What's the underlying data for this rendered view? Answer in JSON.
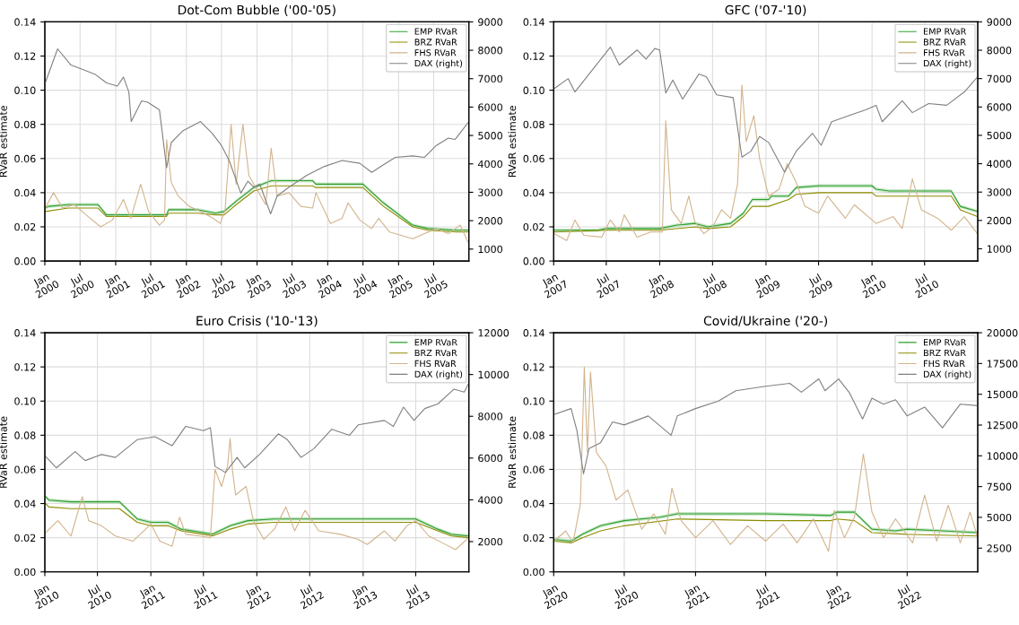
{
  "chart_data": [
    {
      "type": "line",
      "title": "Dot-Com Bubble ('00-'05)",
      "ylabel": "RVaR estimate",
      "grid": true,
      "legend": "top right",
      "xlim": [
        "2000-01-01",
        "2005-12-30"
      ],
      "xticks": [
        {
          "value": "2000-01-01",
          "label": "Jan\n2000"
        },
        {
          "value": "2000-07-01",
          "label": "Jul\n2000"
        },
        {
          "value": "2001-01-01",
          "label": "Jan\n2001"
        },
        {
          "value": "2001-07-01",
          "label": "Jul\n2001"
        },
        {
          "value": "2002-01-01",
          "label": "Jan\n2002"
        },
        {
          "value": "2002-07-01",
          "label": "Jul\n2002"
        },
        {
          "value": "2003-01-01",
          "label": "Jan\n2003"
        },
        {
          "value": "2003-07-01",
          "label": "Jul\n2003"
        },
        {
          "value": "2004-01-01",
          "label": "Jan\n2004"
        },
        {
          "value": "2004-07-01",
          "label": "Jul\n2004"
        },
        {
          "value": "2005-01-01",
          "label": "Jan\n2005"
        },
        {
          "value": "2005-07-01",
          "label": "Jul\n2005"
        }
      ],
      "ylim": [
        0,
        0.14
      ],
      "yticks": [
        {
          "value": 0,
          "label": "0.00"
        },
        {
          "value": 0.02,
          "label": "0.02"
        },
        {
          "value": 0.04,
          "label": "0.04"
        },
        {
          "value": 0.06,
          "label": "0.06"
        },
        {
          "value": 0.08,
          "label": "0.08"
        },
        {
          "value": 0.1,
          "label": "0.10"
        },
        {
          "value": 0.12,
          "label": "0.12"
        },
        {
          "value": 0.14,
          "label": "0.14"
        }
      ],
      "y2lim": [
        580,
        9000
      ],
      "y2ticks": [
        1000,
        2000,
        3000,
        4000,
        5000,
        6000,
        7000,
        8000,
        9000
      ],
      "series": [
        {
          "name": "EMP RVaR",
          "color": "#2ca02c",
          "x": [
            "2000-01-03",
            "2000-01-20",
            "2000-05-01",
            "2000-10-01",
            "2000-11-15",
            "2001-07-01",
            "2001-09-20",
            "2001-10-01",
            "2002-03-01",
            "2002-06-01",
            "2002-07-15",
            "2002-09-15",
            "2002-12-15",
            "2003-03-15",
            "2003-10-15",
            "2003-11-01",
            "2004-07-01",
            "2004-10-15",
            "2005-03-15",
            "2005-06-01",
            "2005-11-01",
            "2005-12-30"
          ],
          "values": [
            0.031,
            0.032,
            0.033,
            0.033,
            0.027,
            0.027,
            0.027,
            0.03,
            0.03,
            0.028,
            0.029,
            0.035,
            0.043,
            0.047,
            0.047,
            0.045,
            0.045,
            0.034,
            0.021,
            0.019,
            0.018,
            0.018
          ],
          "lower": [
            0.03,
            0.031,
            0.032,
            0.032,
            0.026,
            0.026,
            0.026,
            0.029,
            0.029,
            0.027,
            0.028,
            0.034,
            0.042,
            0.046,
            0.046,
            0.044,
            0.044,
            0.033,
            0.02,
            0.018,
            0.017,
            0.017
          ],
          "upper": [
            0.032,
            0.033,
            0.034,
            0.034,
            0.028,
            0.028,
            0.028,
            0.031,
            0.031,
            0.029,
            0.03,
            0.036,
            0.044,
            0.048,
            0.048,
            0.046,
            0.046,
            0.035,
            0.022,
            0.02,
            0.019,
            0.019
          ]
        },
        {
          "name": "BRZ RVaR",
          "color": "#8c8c00",
          "x": [
            "2000-01-03",
            "2000-05-01",
            "2000-10-01",
            "2000-11-15",
            "2001-09-20",
            "2001-10-01",
            "2002-03-01",
            "2002-06-01",
            "2002-07-15",
            "2002-09-15",
            "2002-12-15",
            "2003-03-15",
            "2003-10-15",
            "2003-11-01",
            "2004-07-01",
            "2004-10-15",
            "2005-03-15",
            "2005-06-01",
            "2005-11-01",
            "2005-12-30"
          ],
          "values": [
            0.029,
            0.031,
            0.031,
            0.026,
            0.026,
            0.028,
            0.028,
            0.027,
            0.027,
            0.033,
            0.041,
            0.044,
            0.044,
            0.043,
            0.043,
            0.032,
            0.02,
            0.018,
            0.017,
            0.017
          ]
        },
        {
          "name": "FHS RVaR",
          "color": "#d2b48c",
          "x": [
            "2000-01-03",
            "2000-02-15",
            "2000-04-01",
            "2000-06-01",
            "2000-08-01",
            "2000-10-15",
            "2000-12-15",
            "2001-02-10",
            "2001-03-20",
            "2001-05-10",
            "2001-06-20",
            "2001-08-15",
            "2001-09-10",
            "2001-09-21",
            "2001-10-15",
            "2001-11-20",
            "2002-01-15",
            "2002-03-15",
            "2002-05-20",
            "2002-06-25",
            "2002-07-20",
            "2002-08-20",
            "2002-09-15",
            "2002-10-20",
            "2002-11-20",
            "2003-01-10",
            "2003-02-15",
            "2003-03-15",
            "2003-04-15",
            "2003-06-15",
            "2003-08-15",
            "2003-10-15",
            "2003-11-01",
            "2004-01-15",
            "2004-03-15",
            "2004-04-15",
            "2004-06-15",
            "2004-08-15",
            "2004-09-20",
            "2004-11-15",
            "2005-01-15",
            "2005-03-15",
            "2005-05-15",
            "2005-07-15",
            "2005-09-15",
            "2005-11-15",
            "2005-12-30"
          ],
          "values": [
            0.031,
            0.04,
            0.031,
            0.033,
            0.027,
            0.02,
            0.024,
            0.036,
            0.025,
            0.045,
            0.029,
            0.021,
            0.024,
            0.071,
            0.046,
            0.038,
            0.032,
            0.029,
            0.025,
            0.022,
            0.03,
            0.08,
            0.045,
            0.08,
            0.05,
            0.04,
            0.033,
            0.066,
            0.038,
            0.04,
            0.032,
            0.031,
            0.04,
            0.022,
            0.025,
            0.034,
            0.024,
            0.019,
            0.025,
            0.017,
            0.015,
            0.013,
            0.016,
            0.019,
            0.016,
            0.021,
            0.01
          ]
        },
        {
          "name": "DAX (right)",
          "color": "#808080",
          "axis": "y2",
          "x": [
            "2000-01-03",
            "2000-03-07",
            "2000-05-15",
            "2000-07-15",
            "2000-09-15",
            "2000-11-15",
            "2001-01-10",
            "2001-02-10",
            "2001-03-10",
            "2001-03-22",
            "2001-05-15",
            "2001-06-15",
            "2001-08-15",
            "2001-09-21",
            "2001-10-15",
            "2001-12-15",
            "2002-03-15",
            "2002-05-15",
            "2002-07-01",
            "2002-08-10",
            "2002-10-09",
            "2002-11-15",
            "2002-12-15",
            "2003-01-15",
            "2003-03-12",
            "2003-04-15",
            "2003-06-15",
            "2003-09-15",
            "2003-12-15",
            "2004-03-15",
            "2004-06-15",
            "2004-08-15",
            "2004-10-15",
            "2004-12-15",
            "2005-03-15",
            "2005-05-15",
            "2005-07-15",
            "2005-09-15",
            "2005-10-20",
            "2005-12-30"
          ],
          "values": [
            6850,
            8050,
            7480,
            7320,
            7160,
            6850,
            6740,
            7060,
            6530,
            5490,
            6220,
            6170,
            5900,
            3860,
            4750,
            5170,
            5490,
            5070,
            4650,
            4120,
            2970,
            3390,
            3180,
            3290,
            2240,
            2870,
            3180,
            3600,
            3910,
            4120,
            4020,
            3700,
            3970,
            4230,
            4280,
            4230,
            4650,
            4910,
            4860,
            5490
          ]
        }
      ]
    },
    {
      "type": "line",
      "title": "GFC ('07-'10)",
      "ylabel": "RVaR estimate",
      "grid": true,
      "legend": "top right",
      "xlim": [
        "2007-01-01",
        "2010-12-31"
      ],
      "xticks": [
        {
          "value": "2007-01-01",
          "label": "Jan\n2007"
        },
        {
          "value": "2007-07-01",
          "label": "Jul\n2007"
        },
        {
          "value": "2008-01-01",
          "label": "Jan\n2008"
        },
        {
          "value": "2008-07-01",
          "label": "Jul\n2008"
        },
        {
          "value": "2009-01-01",
          "label": "Jan\n2009"
        },
        {
          "value": "2009-07-01",
          "label": "Jul\n2009"
        },
        {
          "value": "2010-01-01",
          "label": "Jan\n2010"
        },
        {
          "value": "2010-07-01",
          "label": "Jul\n2010"
        }
      ],
      "ylim": [
        0,
        0.14
      ],
      "yticks": [
        {
          "value": 0,
          "label": "0.00"
        },
        {
          "value": 0.02,
          "label": "0.02"
        },
        {
          "value": 0.04,
          "label": "0.04"
        },
        {
          "value": 0.06,
          "label": "0.06"
        },
        {
          "value": 0.08,
          "label": "0.08"
        },
        {
          "value": 0.1,
          "label": "0.10"
        },
        {
          "value": 0.12,
          "label": "0.12"
        },
        {
          "value": 0.14,
          "label": "0.14"
        }
      ],
      "y2lim": [
        570,
        9000
      ],
      "y2ticks": [
        1000,
        2000,
        3000,
        4000,
        5000,
        6000,
        7000,
        8000,
        9000
      ],
      "series": [
        {
          "name": "EMP RVaR",
          "color": "#2ca02c",
          "x": [
            "2007-01-02",
            "2007-06-01",
            "2007-07-01",
            "2008-01-01",
            "2008-03-01",
            "2008-05-01",
            "2008-06-15",
            "2008-09-01",
            "2008-10-15",
            "2008-11-15",
            "2009-01-10",
            "2009-01-20",
            "2009-03-20",
            "2009-04-15",
            "2009-07-01",
            "2010-01-01",
            "2010-01-15",
            "2010-03-01",
            "2010-10-01",
            "2010-11-01",
            "2010-12-30"
          ],
          "values": [
            0.018,
            0.018,
            0.019,
            0.019,
            0.021,
            0.022,
            0.02,
            0.022,
            0.028,
            0.036,
            0.036,
            0.038,
            0.038,
            0.043,
            0.044,
            0.044,
            0.042,
            0.041,
            0.041,
            0.032,
            0.029
          ],
          "lower": [
            0.017,
            0.017,
            0.018,
            0.018,
            0.02,
            0.021,
            0.019,
            0.021,
            0.027,
            0.035,
            0.035,
            0.037,
            0.037,
            0.042,
            0.043,
            0.043,
            0.041,
            0.04,
            0.04,
            0.031,
            0.028
          ],
          "upper": [
            0.019,
            0.019,
            0.02,
            0.02,
            0.022,
            0.023,
            0.021,
            0.023,
            0.029,
            0.037,
            0.037,
            0.039,
            0.039,
            0.044,
            0.045,
            0.045,
            0.043,
            0.042,
            0.042,
            0.033,
            0.03
          ]
        },
        {
          "name": "BRZ RVaR",
          "color": "#8c8c00",
          "x": [
            "2007-01-02",
            "2007-07-01",
            "2008-01-01",
            "2008-05-01",
            "2008-06-15",
            "2008-09-01",
            "2008-10-15",
            "2008-11-15",
            "2009-01-10",
            "2009-03-20",
            "2009-04-15",
            "2009-07-01",
            "2010-01-01",
            "2010-01-15",
            "2010-10-01",
            "2010-11-01",
            "2010-12-30"
          ],
          "values": [
            0.017,
            0.018,
            0.018,
            0.02,
            0.019,
            0.02,
            0.026,
            0.032,
            0.032,
            0.036,
            0.039,
            0.04,
            0.04,
            0.038,
            0.038,
            0.03,
            0.026
          ]
        },
        {
          "name": "FHS RVaR",
          "color": "#d2b48c",
          "x": [
            "2007-01-02",
            "2007-02-15",
            "2007-03-15",
            "2007-04-15",
            "2007-06-15",
            "2007-07-15",
            "2007-08-15",
            "2007-09-01",
            "2007-10-15",
            "2007-12-01",
            "2008-01-10",
            "2008-01-22",
            "2008-02-10",
            "2008-03-15",
            "2008-04-10",
            "2008-05-01",
            "2008-06-01",
            "2008-07-01",
            "2008-08-01",
            "2008-09-01",
            "2008-09-25",
            "2008-10-10",
            "2008-10-25",
            "2008-11-20",
            "2008-12-10",
            "2009-01-10",
            "2009-02-15",
            "2009-03-15",
            "2009-04-15",
            "2009-05-15",
            "2009-07-01",
            "2009-08-01",
            "2009-10-01",
            "2009-11-01",
            "2010-01-15",
            "2010-03-15",
            "2010-04-15",
            "2010-05-20",
            "2010-06-20",
            "2010-08-15",
            "2010-10-01",
            "2010-11-15",
            "2010-12-30"
          ],
          "values": [
            0.016,
            0.012,
            0.024,
            0.015,
            0.014,
            0.024,
            0.017,
            0.027,
            0.014,
            0.017,
            0.017,
            0.082,
            0.03,
            0.022,
            0.038,
            0.023,
            0.016,
            0.02,
            0.03,
            0.025,
            0.045,
            0.103,
            0.07,
            0.085,
            0.06,
            0.038,
            0.042,
            0.057,
            0.046,
            0.032,
            0.028,
            0.038,
            0.025,
            0.033,
            0.022,
            0.026,
            0.019,
            0.048,
            0.03,
            0.025,
            0.018,
            0.026,
            0.016
          ]
        },
        {
          "name": "DAX (right)",
          "color": "#808080",
          "axis": "y2",
          "x": [
            "2007-01-02",
            "2007-02-20",
            "2007-03-15",
            "2007-07-15",
            "2007-08-15",
            "2007-10-15",
            "2007-11-15",
            "2007-12-15",
            "2008-01-01",
            "2008-01-22",
            "2008-02-15",
            "2008-03-20",
            "2008-05-15",
            "2008-06-10",
            "2008-07-15",
            "2008-09-10",
            "2008-10-10",
            "2008-11-10",
            "2008-12-10",
            "2009-01-10",
            "2009-03-06",
            "2009-04-15",
            "2009-06-10",
            "2009-07-10",
            "2009-08-15",
            "2009-10-15",
            "2009-12-10",
            "2010-01-15",
            "2010-02-05",
            "2010-04-15",
            "2010-05-20",
            "2010-07-15",
            "2010-09-15",
            "2010-11-15",
            "2010-12-30"
          ],
          "values": [
            6640,
            7000,
            6530,
            8110,
            7480,
            8010,
            7690,
            8060,
            8010,
            6490,
            6950,
            6280,
            7160,
            7060,
            6430,
            6330,
            4230,
            4440,
            4960,
            4750,
            3700,
            4440,
            5070,
            4650,
            5480,
            5700,
            5900,
            6060,
            5480,
            6220,
            5800,
            6120,
            6060,
            6530,
            7060
          ]
        }
      ]
    },
    {
      "type": "line",
      "title": "Euro Crisis ('10-'13)",
      "ylabel": "RVaR estimate",
      "grid": true,
      "legend": "top right",
      "xlim": [
        "2010-01-01",
        "2013-12-31"
      ],
      "xticks": [
        {
          "value": "2010-01-01",
          "label": "Jan\n2010"
        },
        {
          "value": "2010-07-01",
          "label": "Jul\n2010"
        },
        {
          "value": "2011-01-01",
          "label": "Jan\n2011"
        },
        {
          "value": "2011-07-01",
          "label": "Jul\n2011"
        },
        {
          "value": "2012-01-01",
          "label": "Jan\n2012"
        },
        {
          "value": "2012-07-01",
          "label": "Jul\n2012"
        },
        {
          "value": "2013-01-01",
          "label": "Jan\n2013"
        },
        {
          "value": "2013-07-01",
          "label": "Jul\n2013"
        }
      ],
      "ylim": [
        0,
        0.14
      ],
      "yticks": [
        {
          "value": 0,
          "label": "0.00"
        },
        {
          "value": 0.02,
          "label": "0.02"
        },
        {
          "value": 0.04,
          "label": "0.04"
        },
        {
          "value": 0.06,
          "label": "0.06"
        },
        {
          "value": 0.08,
          "label": "0.08"
        },
        {
          "value": 0.1,
          "label": "0.10"
        },
        {
          "value": 0.12,
          "label": "0.12"
        },
        {
          "value": 0.14,
          "label": "0.14"
        }
      ],
      "y2lim": [
        550,
        12000
      ],
      "y2ticks": [
        2000,
        4000,
        6000,
        8000,
        10000,
        12000
      ],
      "series": [
        {
          "name": "EMP RVaR",
          "color": "#2ca02c",
          "x": [
            "2010-01-04",
            "2010-01-15",
            "2010-04-01",
            "2010-09-15",
            "2010-11-15",
            "2011-01-01",
            "2011-03-01",
            "2011-04-15",
            "2011-07-01",
            "2011-08-01",
            "2011-10-01",
            "2011-12-01",
            "2012-03-01",
            "2012-09-01",
            "2013-03-01",
            "2013-07-01",
            "2013-09-15",
            "2013-11-01",
            "2013-12-30"
          ],
          "values": [
            0.044,
            0.042,
            0.041,
            0.041,
            0.031,
            0.029,
            0.029,
            0.025,
            0.023,
            0.022,
            0.027,
            0.03,
            0.031,
            0.031,
            0.031,
            0.031,
            0.025,
            0.022,
            0.021
          ],
          "lower": [
            0.043,
            0.041,
            0.04,
            0.04,
            0.03,
            0.028,
            0.028,
            0.024,
            0.022,
            0.021,
            0.026,
            0.029,
            0.03,
            0.03,
            0.03,
            0.03,
            0.024,
            0.021,
            0.02
          ],
          "upper": [
            0.045,
            0.043,
            0.042,
            0.042,
            0.032,
            0.03,
            0.03,
            0.026,
            0.024,
            0.023,
            0.028,
            0.031,
            0.032,
            0.032,
            0.032,
            0.032,
            0.026,
            0.023,
            0.022
          ]
        },
        {
          "name": "BRZ RVaR",
          "color": "#8c8c00",
          "x": [
            "2010-01-04",
            "2010-01-15",
            "2010-04-01",
            "2010-09-15",
            "2010-11-15",
            "2011-01-01",
            "2011-03-01",
            "2011-04-15",
            "2011-07-01",
            "2011-08-01",
            "2011-10-01",
            "2011-12-01",
            "2012-03-01",
            "2013-07-01",
            "2013-09-15",
            "2013-11-01",
            "2013-12-30"
          ],
          "values": [
            0.04,
            0.038,
            0.037,
            0.037,
            0.029,
            0.027,
            0.027,
            0.024,
            0.022,
            0.021,
            0.025,
            0.028,
            0.029,
            0.029,
            0.024,
            0.021,
            0.02
          ]
        },
        {
          "name": "FHS RVaR",
          "color": "#d2b48c",
          "x": [
            "2010-01-04",
            "2010-02-15",
            "2010-04-01",
            "2010-05-10",
            "2010-06-01",
            "2010-07-15",
            "2010-09-01",
            "2010-11-01",
            "2011-01-01",
            "2011-02-01",
            "2011-03-15",
            "2011-04-10",
            "2011-05-01",
            "2011-06-20",
            "2011-07-25",
            "2011-08-10",
            "2011-09-01",
            "2011-09-22",
            "2011-10-01",
            "2011-10-10",
            "2011-10-20",
            "2011-11-25",
            "2011-12-20",
            "2012-01-25",
            "2012-03-01",
            "2012-04-10",
            "2012-05-10",
            "2012-06-15",
            "2012-08-01",
            "2012-10-15",
            "2012-12-15",
            "2013-01-15",
            "2013-03-15",
            "2013-04-20",
            "2013-06-01",
            "2013-07-01",
            "2013-08-15",
            "2013-10-01",
            "2013-11-15",
            "2013-12-30"
          ],
          "values": [
            0.023,
            0.03,
            0.021,
            0.044,
            0.03,
            0.027,
            0.021,
            0.018,
            0.028,
            0.018,
            0.015,
            0.032,
            0.022,
            0.021,
            0.02,
            0.06,
            0.05,
            0.062,
            0.078,
            0.058,
            0.045,
            0.05,
            0.03,
            0.019,
            0.025,
            0.038,
            0.024,
            0.036,
            0.024,
            0.022,
            0.019,
            0.016,
            0.024,
            0.018,
            0.027,
            0.03,
            0.021,
            0.017,
            0.013,
            0.02
          ]
        },
        {
          "name": "DAX (right)",
          "color": "#808080",
          "axis": "y2",
          "x": [
            "2010-01-04",
            "2010-02-10",
            "2010-04-15",
            "2010-05-20",
            "2010-07-15",
            "2010-09-01",
            "2010-11-15",
            "2011-01-15",
            "2011-03-15",
            "2011-05-01",
            "2011-07-01",
            "2011-07-25",
            "2011-08-10",
            "2011-09-15",
            "2011-10-25",
            "2011-11-20",
            "2012-01-10",
            "2012-03-15",
            "2012-04-15",
            "2012-06-01",
            "2012-07-15",
            "2012-09-15",
            "2012-11-15",
            "2012-12-15",
            "2013-03-15",
            "2013-04-15",
            "2013-05-20",
            "2013-06-25",
            "2013-08-01",
            "2013-09-15",
            "2013-11-10",
            "2013-12-15",
            "2013-12-30"
          ],
          "values": [
            6070,
            5530,
            6310,
            5880,
            6170,
            6030,
            6880,
            7020,
            6590,
            7520,
            7310,
            7450,
            5600,
            5310,
            6030,
            5530,
            6170,
            7160,
            6880,
            6030,
            6450,
            7380,
            7090,
            7590,
            7800,
            7520,
            8440,
            7800,
            8370,
            8590,
            9300,
            9160,
            9580
          ]
        }
      ]
    },
    {
      "type": "line",
      "title": "Covid/Ukraine ('20-)",
      "ylabel": "RVaR estimate",
      "grid": true,
      "legend": "top right",
      "xlim": [
        "2020-01-01",
        "2022-12-30"
      ],
      "xticks": [
        {
          "value": "2020-01-01",
          "label": "Jan\n2020"
        },
        {
          "value": "2020-07-01",
          "label": "Jul\n2020"
        },
        {
          "value": "2021-01-01",
          "label": "Jan\n2021"
        },
        {
          "value": "2021-07-01",
          "label": "Jul\n2021"
        },
        {
          "value": "2022-01-01",
          "label": "Jan\n2022"
        },
        {
          "value": "2022-07-01",
          "label": "Jul\n2022"
        }
      ],
      "ylim": [
        0,
        0.14
      ],
      "yticks": [
        {
          "value": 0,
          "label": "0.00"
        },
        {
          "value": 0.02,
          "label": "0.02"
        },
        {
          "value": 0.04,
          "label": "0.04"
        },
        {
          "value": 0.06,
          "label": "0.06"
        },
        {
          "value": 0.08,
          "label": "0.08"
        },
        {
          "value": 0.1,
          "label": "0.10"
        },
        {
          "value": 0.12,
          "label": "0.12"
        },
        {
          "value": 0.14,
          "label": "0.14"
        }
      ],
      "y2lim": [
        570,
        20000
      ],
      "y2ticks": [
        2500,
        5000,
        7500,
        10000,
        12500,
        15000,
        17500,
        20000
      ],
      "series": [
        {
          "name": "EMP RVaR",
          "color": "#2ca02c",
          "x": [
            "2020-01-02",
            "2020-02-15",
            "2020-03-15",
            "2020-05-01",
            "2020-07-01",
            "2020-10-01",
            "2020-11-15",
            "2021-01-01",
            "2021-07-01",
            "2021-12-15",
            "2022-01-01",
            "2022-02-15",
            "2022-04-01",
            "2022-06-01",
            "2022-07-01",
            "2022-10-01",
            "2022-12-30"
          ],
          "values": [
            0.019,
            0.018,
            0.022,
            0.027,
            0.03,
            0.032,
            0.034,
            0.034,
            0.034,
            0.033,
            0.035,
            0.035,
            0.025,
            0.024,
            0.025,
            0.024,
            0.023
          ],
          "lower": [
            0.018,
            0.017,
            0.021,
            0.026,
            0.029,
            0.031,
            0.033,
            0.033,
            0.033,
            0.032,
            0.034,
            0.034,
            0.024,
            0.023,
            0.024,
            0.023,
            0.022
          ],
          "upper": [
            0.02,
            0.019,
            0.023,
            0.028,
            0.031,
            0.033,
            0.035,
            0.035,
            0.035,
            0.034,
            0.036,
            0.036,
            0.026,
            0.025,
            0.026,
            0.025,
            0.024
          ]
        },
        {
          "name": "BRZ RVaR",
          "color": "#8c8c00",
          "x": [
            "2020-01-02",
            "2020-02-15",
            "2020-03-15",
            "2020-05-01",
            "2020-07-01",
            "2020-11-15",
            "2021-07-01",
            "2021-12-15",
            "2022-01-01",
            "2022-02-15",
            "2022-04-01",
            "2022-07-01",
            "2022-12-30"
          ],
          "values": [
            0.018,
            0.017,
            0.02,
            0.024,
            0.027,
            0.031,
            0.03,
            0.03,
            0.031,
            0.03,
            0.023,
            0.022,
            0.021
          ]
        },
        {
          "name": "FHS RVaR",
          "color": "#d2b48c",
          "x": [
            "2020-01-02",
            "2020-02-01",
            "2020-02-20",
            "2020-03-10",
            "2020-03-20",
            "2020-03-28",
            "2020-04-05",
            "2020-04-20",
            "2020-05-15",
            "2020-06-10",
            "2020-07-10",
            "2020-08-15",
            "2020-09-15",
            "2020-10-15",
            "2020-11-01",
            "2020-11-25",
            "2021-01-01",
            "2021-02-15",
            "2021-04-01",
            "2021-05-15",
            "2021-07-01",
            "2021-08-15",
            "2021-09-20",
            "2021-11-01",
            "2021-12-10",
            "2021-12-25",
            "2022-01-20",
            "2022-02-15",
            "2022-03-10",
            "2022-04-01",
            "2022-05-01",
            "2022-06-01",
            "2022-07-15",
            "2022-08-15",
            "2022-09-15",
            "2022-10-15",
            "2022-11-15",
            "2022-12-10",
            "2022-12-30"
          ],
          "values": [
            0.018,
            0.024,
            0.017,
            0.04,
            0.12,
            0.07,
            0.117,
            0.07,
            0.062,
            0.042,
            0.048,
            0.025,
            0.034,
            0.022,
            0.049,
            0.03,
            0.02,
            0.03,
            0.016,
            0.027,
            0.018,
            0.028,
            0.017,
            0.031,
            0.012,
            0.036,
            0.02,
            0.032,
            0.069,
            0.035,
            0.02,
            0.031,
            0.017,
            0.045,
            0.018,
            0.039,
            0.017,
            0.035,
            0.02
          ]
        },
        {
          "name": "DAX (right)",
          "color": "#808080",
          "axis": "y2",
          "x": [
            "2020-01-02",
            "2020-02-15",
            "2020-03-01",
            "2020-03-18",
            "2020-04-01",
            "2020-05-01",
            "2020-06-01",
            "2020-07-01",
            "2020-09-01",
            "2020-10-30",
            "2020-11-15",
            "2021-01-01",
            "2021-03-01",
            "2021-04-15",
            "2021-07-01",
            "2021-09-01",
            "2021-10-01",
            "2021-11-15",
            "2021-12-01",
            "2022-01-05",
            "2022-02-01",
            "2022-03-08",
            "2022-04-01",
            "2022-05-01",
            "2022-06-01",
            "2022-07-01",
            "2022-08-15",
            "2022-09-30",
            "2022-11-15",
            "2022-12-30"
          ],
          "values": [
            13360,
            13840,
            12030,
            8530,
            10580,
            11070,
            12760,
            12510,
            13240,
            11670,
            13240,
            13840,
            14450,
            15290,
            15650,
            15890,
            15170,
            16250,
            15290,
            16250,
            15170,
            12990,
            14690,
            14200,
            14560,
            13240,
            13960,
            12270,
            14200,
            14080
          ]
        }
      ]
    }
  ]
}
